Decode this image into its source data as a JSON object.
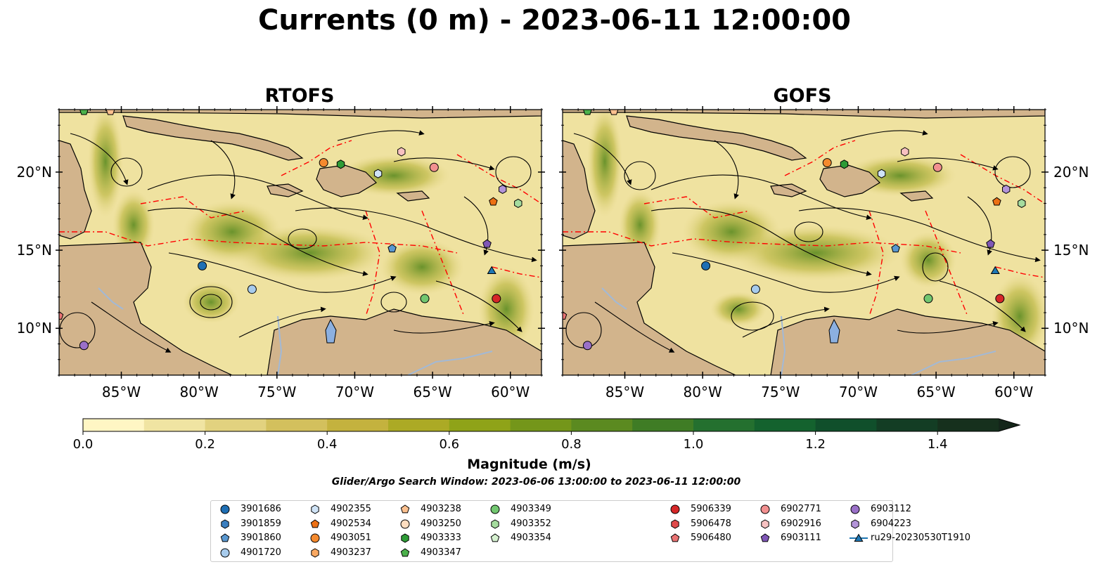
{
  "title": "Currents (0 m) - 2023-06-11 12:00:00",
  "panels": [
    {
      "title": "RTOFS"
    },
    {
      "title": "GOFS"
    }
  ],
  "map": {
    "lon_range": [
      -89,
      -58
    ],
    "lat_range": [
      7,
      24
    ],
    "lon_ticks": [
      "85°W",
      "80°W",
      "75°W",
      "70°W",
      "65°W",
      "60°W"
    ],
    "lat_ticks": [
      "20°N",
      "15°N",
      "10°N"
    ],
    "colors": {
      "land": "#d2b48c",
      "water": "#a2b9d6",
      "streamlines": "#000000",
      "eez_boundary": "#ff0000"
    }
  },
  "colorbar": {
    "label": "Magnitude (m/s)",
    "tick_labels": [
      "0.0",
      "0.2",
      "0.4",
      "0.6",
      "0.8",
      "1.0",
      "1.2",
      "1.4"
    ],
    "range": [
      0,
      1.5
    ],
    "extend": "max",
    "colors": [
      "#fff6c4",
      "#f0e4a2",
      "#e2d27f",
      "#d3c05d",
      "#c4b23e",
      "#acaa25",
      "#8fa318",
      "#74961a",
      "#5b8a20",
      "#3f7c25",
      "#24702f",
      "#14622e",
      "#104f2b",
      "#133d24",
      "#16301d",
      "#14261a"
    ]
  },
  "search_window": "Glider/Argo Search Window: 2023-06-06 13:00:00 to 2023-06-11 12:00:00",
  "legend": [
    {
      "label": "3901686",
      "marker": "circle",
      "color": "#1f6fb4"
    },
    {
      "label": "3901859",
      "marker": "hexagon",
      "color": "#3b7fc0"
    },
    {
      "label": "3901860",
      "marker": "pentagon",
      "color": "#5a98d0"
    },
    {
      "label": "4901720",
      "marker": "circle",
      "color": "#a7cbec"
    },
    {
      "label": "4902355",
      "marker": "hexagon",
      "color": "#cfe3f6"
    },
    {
      "label": "4902534",
      "marker": "pentagon",
      "color": "#ec7014"
    },
    {
      "label": "4903051",
      "marker": "circle",
      "color": "#f58a2e"
    },
    {
      "label": "4903237",
      "marker": "hexagon",
      "color": "#f9a861"
    },
    {
      "label": "4903238",
      "marker": "pentagon",
      "color": "#fbc08f"
    },
    {
      "label": "4903250",
      "marker": "circle",
      "color": "#fdddc0"
    },
    {
      "label": "4903333",
      "marker": "hexagon",
      "color": "#2e9b36"
    },
    {
      "label": "4903347",
      "marker": "pentagon",
      "color": "#4bb14b"
    },
    {
      "label": "4903349",
      "marker": "circle",
      "color": "#72c770"
    },
    {
      "label": "4903352",
      "marker": "hexagon",
      "color": "#a5dc9e"
    },
    {
      "label": "4903354",
      "marker": "pentagon",
      "color": "#d5f0cf"
    },
    {
      "label": "5906339",
      "marker": "circle",
      "color": "#d62728"
    },
    {
      "label": "5906478",
      "marker": "hexagon",
      "color": "#e04a4b"
    },
    {
      "label": "5906480",
      "marker": "pentagon",
      "color": "#ea7474"
    },
    {
      "label": "6902771",
      "marker": "circle",
      "color": "#f29090"
    },
    {
      "label": "6902916",
      "marker": "hexagon",
      "color": "#f7c1c1"
    },
    {
      "label": "6903111",
      "marker": "pentagon",
      "color": "#7f57b6"
    },
    {
      "label": "6903112",
      "marker": "circle",
      "color": "#9a70c8"
    },
    {
      "label": "6904223",
      "marker": "hexagon",
      "color": "#b394d8"
    },
    {
      "label": "ru29-20230530T1910",
      "marker": "triangle-line",
      "color": "#1f77b4"
    }
  ],
  "floats": [
    {
      "label": "3901686",
      "lon": -79.8,
      "lat": 14.0
    },
    {
      "label": "4901720",
      "lon": -76.6,
      "lat": 12.5
    },
    {
      "label": "3901860",
      "lon": -67.6,
      "lat": 15.1
    },
    {
      "label": "4902355",
      "lon": -68.5,
      "lat": 19.9
    },
    {
      "label": "4903051",
      "lon": -72.0,
      "lat": 20.6
    },
    {
      "label": "4903333",
      "lon": -70.9,
      "lat": 20.5
    },
    {
      "label": "6902916",
      "lon": -67.0,
      "lat": 21.3
    },
    {
      "label": "6902771",
      "lon": -64.9,
      "lat": 20.3
    },
    {
      "label": "6904223",
      "lon": -60.5,
      "lat": 18.9
    },
    {
      "label": "4902534",
      "lon": -61.1,
      "lat": 18.1
    },
    {
      "label": "4903352",
      "lon": -59.5,
      "lat": 18.0
    },
    {
      "label": "6903111",
      "lon": -61.5,
      "lat": 15.4
    },
    {
      "label": "ru29-20230530T1910",
      "lon": -61.2,
      "lat": 13.7
    },
    {
      "label": "5906339",
      "lon": -60.9,
      "lat": 11.9
    },
    {
      "label": "4903349",
      "lon": -65.5,
      "lat": 11.9
    },
    {
      "label": "4903238",
      "lon": -85.7,
      "lat": 23.9
    },
    {
      "label": "4903347",
      "lon": -87.4,
      "lat": 23.9
    },
    {
      "label": "5906480",
      "lon": -89.0,
      "lat": 10.8
    },
    {
      "label": "6903112",
      "lon": -87.4,
      "lat": 8.9
    }
  ]
}
